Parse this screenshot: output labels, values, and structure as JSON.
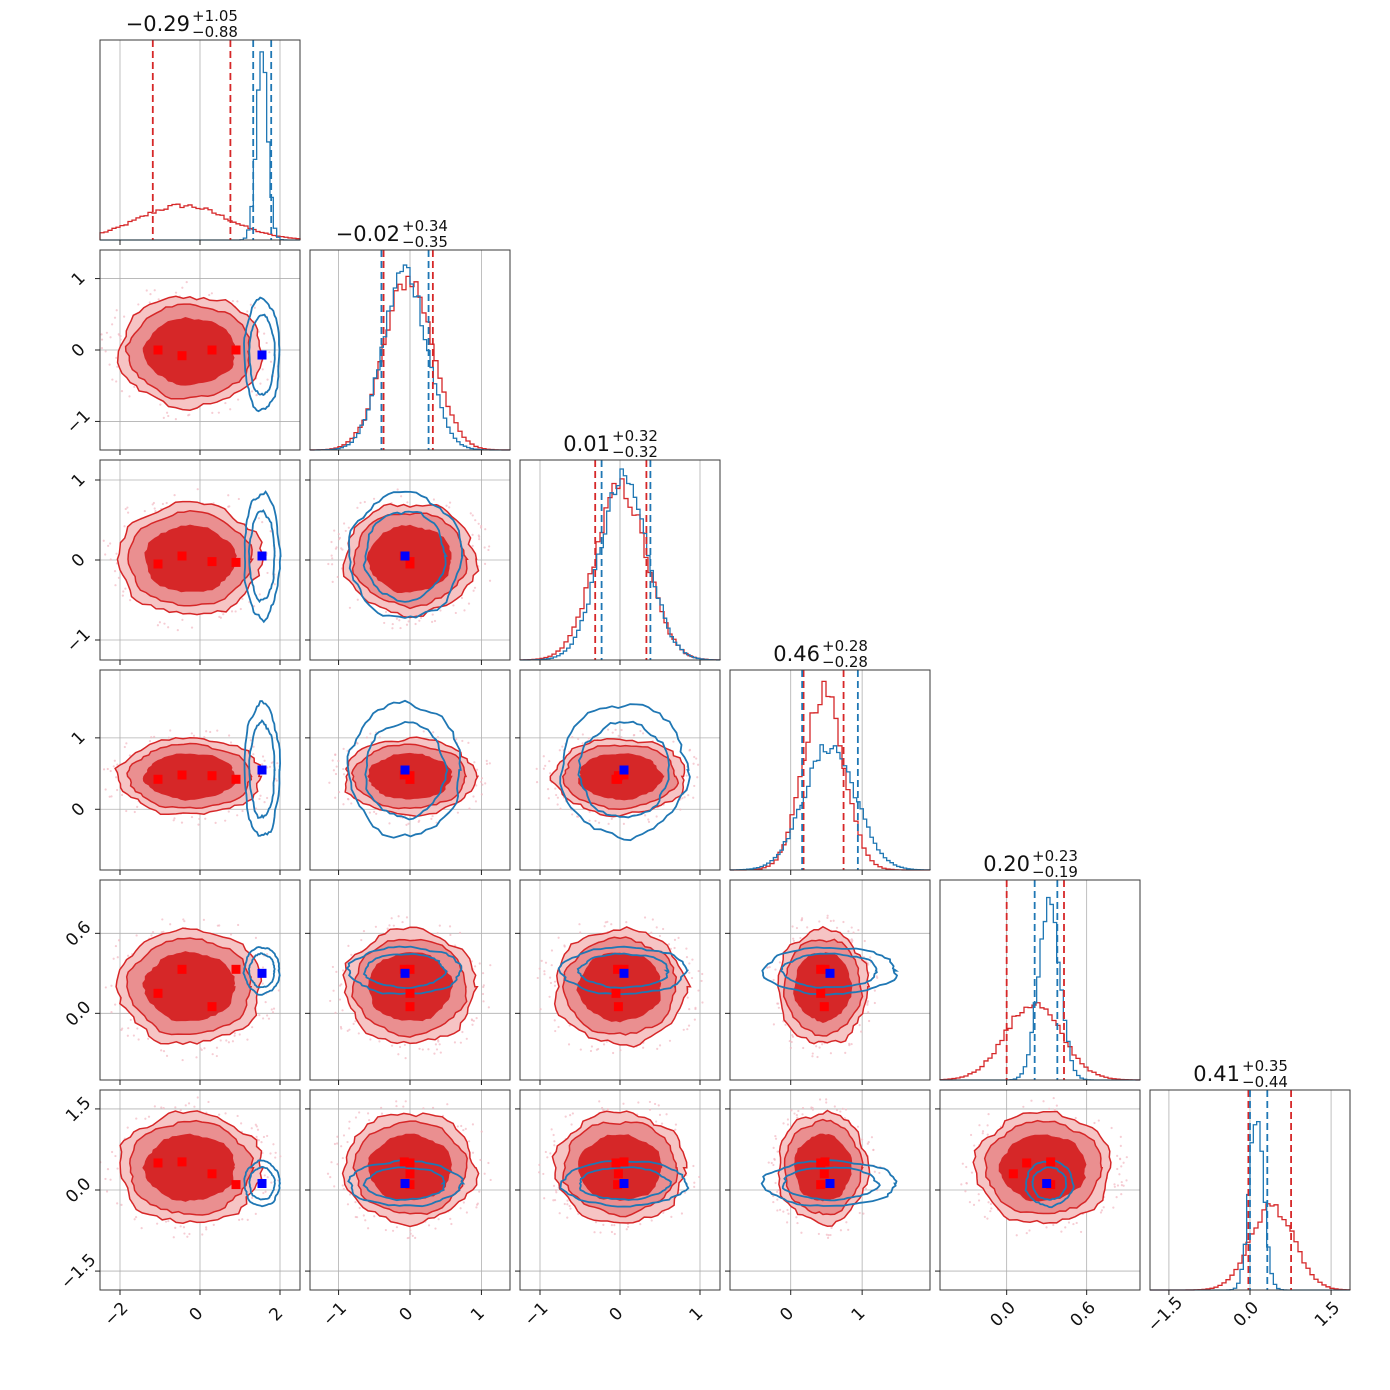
{
  "chart_data": {
    "type": "corner",
    "n_params": 6,
    "colors": {
      "red": "#d62728",
      "blue": "#1f77b4",
      "marker": "#0000ff"
    },
    "params": [
      {
        "range": [
          -2.5,
          2.5
        ],
        "ticks": [
          -2,
          0,
          2
        ],
        "tick_labels": [
          "−2",
          "0",
          "2"
        ],
        "title": {
          "median": "−0.29",
          "plus": "+1.05",
          "minus": "−0.88"
        },
        "red_hist": {
          "mean": -0.6,
          "sd": 1.15,
          "peak": 0.17,
          "skew": 0.15
        },
        "blue_hist": {
          "mean": 1.55,
          "sd": 0.14,
          "peak": 0.92
        },
        "red_quantiles": [
          -1.18,
          0.76
        ],
        "blue_quantiles": [
          1.33,
          1.78
        ],
        "red_markers": [
          -1.05,
          -0.45,
          0.3,
          0.9
        ],
        "blue_marker": 1.55,
        "red_core": [
          -2.1,
          1.6
        ],
        "blue_core": [
          1.1,
          2.0
        ]
      },
      {
        "range": [
          -1.4,
          1.4
        ],
        "ticks": [
          -1,
          0,
          1
        ],
        "tick_labels": [
          "−1",
          "0",
          "1"
        ],
        "title": {
          "median": "−0.02",
          "plus": "+0.34",
          "minus": "−0.35"
        },
        "red_hist": {
          "mean": -0.02,
          "sd": 0.34,
          "peak": 0.86
        },
        "blue_hist": {
          "mean": -0.07,
          "sd": 0.3,
          "peak": 0.9
        },
        "red_quantiles": [
          -0.37,
          0.32
        ],
        "blue_quantiles": [
          -0.4,
          0.26
        ],
        "red_markers": [
          0.0,
          -0.08,
          0.0,
          0.0
        ],
        "blue_marker": -0.07,
        "red_core": [
          -0.95,
          0.95
        ],
        "blue_core": [
          -0.8,
          0.8
        ]
      },
      {
        "range": [
          -1.25,
          1.25
        ],
        "ticks": [
          -1,
          0,
          1
        ],
        "tick_labels": [
          "−1",
          "0",
          "1"
        ],
        "title": {
          "median": "0.01",
          "plus": "+0.32",
          "minus": "−0.32"
        },
        "red_hist": {
          "mean": 0.01,
          "sd": 0.32,
          "peak": 0.86
        },
        "blue_hist": {
          "mean": 0.05,
          "sd": 0.3,
          "peak": 0.9
        },
        "red_quantiles": [
          -0.31,
          0.33
        ],
        "blue_quantiles": [
          -0.23,
          0.38
        ],
        "red_markers": [
          -0.05,
          0.05,
          -0.02,
          -0.03
        ],
        "blue_marker": 0.05,
        "red_core": [
          -0.85,
          0.85
        ],
        "blue_core": [
          -0.8,
          0.8
        ]
      },
      {
        "range": [
          -0.85,
          1.95
        ],
        "ticks": [
          0,
          1
        ],
        "tick_labels": [
          "0",
          "1"
        ],
        "title": {
          "median": "0.46",
          "plus": "+0.28",
          "minus": "−0.28"
        },
        "red_hist": {
          "mean": 0.46,
          "sd": 0.28,
          "peak": 0.9
        },
        "blue_hist": {
          "mean": 0.55,
          "sd": 0.36,
          "peak": 0.62
        },
        "red_quantiles": [
          0.18,
          0.74
        ],
        "blue_quantiles": [
          0.16,
          0.94
        ],
        "red_markers": [
          0.42,
          0.48,
          0.47,
          0.42
        ],
        "blue_marker": 0.55,
        "red_core": [
          -0.2,
          1.1
        ],
        "blue_core": [
          -0.4,
          1.5
        ]
      },
      {
        "range": [
          -0.5,
          1.0
        ],
        "ticks": [
          0.0,
          0.6
        ],
        "tick_labels": [
          "0.0",
          "0.6"
        ],
        "title": {
          "median": "0.20",
          "plus": "+0.23",
          "minus": "−0.19"
        },
        "red_hist": {
          "mean": 0.2,
          "sd": 0.21,
          "peak": 0.38
        },
        "blue_hist": {
          "mean": 0.32,
          "sd": 0.08,
          "peak": 0.9
        },
        "red_quantiles": [
          0.0,
          0.43
        ],
        "blue_quantiles": [
          0.21,
          0.38
        ],
        "red_markers": [
          0.15,
          0.33,
          0.05,
          0.33
        ],
        "blue_marker": 0.3,
        "red_core": [
          -0.25,
          0.8
        ],
        "blue_core": [
          0.12,
          0.48
        ]
      },
      {
        "range": [
          -1.85,
          1.85
        ],
        "ticks": [
          -1.5,
          0.0,
          1.5
        ],
        "tick_labels": [
          "−1.5",
          "0.0",
          "1.5"
        ],
        "title": {
          "median": "0.41",
          "plus": "+0.35",
          "minus": "−0.44"
        },
        "red_hist": {
          "mean": 0.41,
          "sd": 0.4,
          "peak": 0.42
        },
        "blue_hist": {
          "mean": 0.12,
          "sd": 0.13,
          "peak": 0.9
        },
        "red_quantiles": [
          -0.03,
          0.76
        ],
        "blue_quantiles": [
          0.0,
          0.32
        ],
        "red_markers": [
          0.5,
          0.52,
          0.3,
          0.1
        ],
        "blue_marker": 0.12,
        "red_core": [
          -1.2,
          1.3
        ],
        "blue_core": [
          -0.3,
          0.55
        ]
      }
    ]
  }
}
